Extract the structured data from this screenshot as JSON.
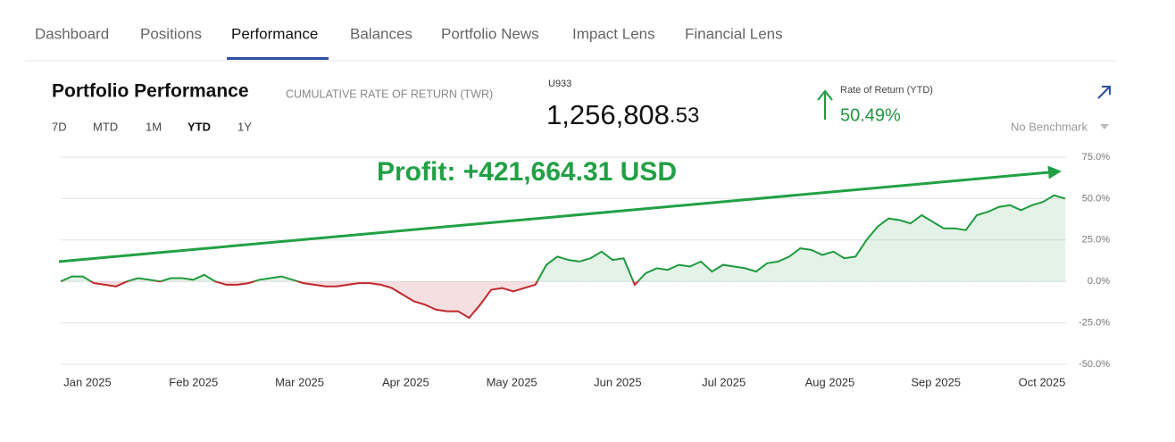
{
  "nav": [
    "Dashboard",
    "Positions",
    "Performance",
    "Balances",
    "Portfolio News",
    "Impact Lens",
    "Financial Lens"
  ],
  "header": {
    "title": "Portfolio Performance",
    "subtitle": "CUMULATIVE RATE OF RETURN (TWR)",
    "periods": [
      "7D",
      "MTD",
      "1M",
      "YTD",
      "1Y"
    ],
    "account": "U933",
    "value_main": "1,256,808",
    "value_cents": ".53",
    "rate_label": "Rate of Return (YTD)",
    "rate": "50.49%",
    "benchmark": "No Benchmark"
  },
  "chart_data": {
    "type": "line",
    "annotation": "Profit: +421,664.31 USD",
    "xtick_labels": [
      "Jan 2025",
      "Feb 2025",
      "Mar 2025",
      "Apr 2025",
      "May 2025",
      "Jun 2025",
      "Jul 2025",
      "Aug 2025",
      "Sep 2025",
      "Oct 2025"
    ],
    "series": [
      {
        "name": "Rate of Return",
        "color": "#1f9a3e",
        "negative_color": "#c0282d",
        "values": [
          0,
          3,
          3,
          -1,
          -2,
          -3,
          0,
          2,
          1,
          0,
          2,
          2,
          1,
          4,
          0,
          -2,
          -2,
          -1,
          1,
          2,
          3,
          1,
          -1,
          -2,
          -3,
          -3,
          -2,
          -1,
          -1,
          -2,
          -4,
          -8,
          -12,
          -14,
          -17,
          -18,
          -18,
          -22,
          -14,
          -5,
          -4,
          -6,
          -4,
          -2,
          10,
          15,
          13,
          12,
          14,
          18,
          13,
          14,
          -2,
          5,
          8,
          7,
          10,
          9,
          12,
          6,
          10,
          9,
          8,
          6,
          11,
          12,
          15,
          20,
          19,
          16,
          18,
          14,
          15,
          25,
          33,
          38,
          37,
          35,
          40,
          36,
          32,
          32,
          31,
          40,
          42,
          45,
          46,
          43,
          46,
          48,
          52,
          50
        ]
      }
    ],
    "ylim": [
      -50,
      75
    ],
    "yticks": [
      {
        "value": -50,
        "label": "-50.0%"
      },
      {
        "value": -25,
        "label": "-25.0%"
      },
      {
        "value": 0,
        "label": "0.0%"
      },
      {
        "value": 25,
        "label": "25.0%"
      },
      {
        "value": 50,
        "label": "50.0%"
      },
      {
        "value": 75,
        "label": "75.0%"
      }
    ],
    "grid": true
  }
}
